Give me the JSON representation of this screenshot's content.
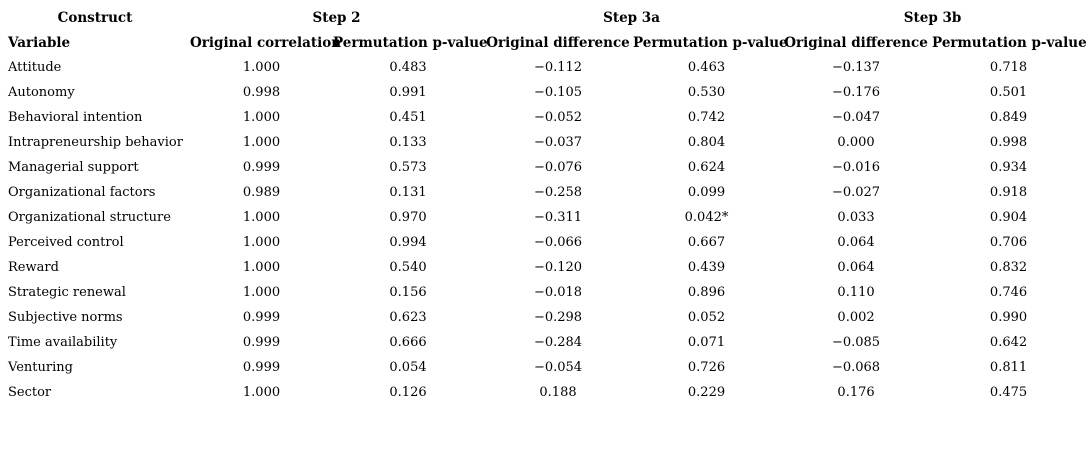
{
  "table": {
    "group_headers": [
      {
        "label": "Construct",
        "span": 1
      },
      {
        "label": "Step 2",
        "span": 2
      },
      {
        "label": "Step 3a",
        "span": 2
      },
      {
        "label": "Step 3b",
        "span": 2
      }
    ],
    "col_headers": [
      "Variable",
      "Original correlation",
      "Permutation p-value",
      "Original difference",
      "Permutation p-value",
      "Original difference",
      "Permutation p-value"
    ],
    "rows": [
      {
        "variable": "Attitude",
        "values": [
          "1.000",
          "0.483",
          "−0.112",
          "0.463",
          "−0.137",
          "0.718"
        ]
      },
      {
        "variable": "Autonomy",
        "values": [
          "0.998",
          "0.991",
          "−0.105",
          "0.530",
          "−0.176",
          "0.501"
        ]
      },
      {
        "variable": "Behavioral intention",
        "values": [
          "1.000",
          "0.451",
          "−0.052",
          "0.742",
          "−0.047",
          "0.849"
        ]
      },
      {
        "variable": "Intrapreneurship behavior",
        "values": [
          "1.000",
          "0.133",
          "−0.037",
          "0.804",
          "0.000",
          "0.998"
        ]
      },
      {
        "variable": "Managerial support",
        "values": [
          "0.999",
          "0.573",
          "−0.076",
          "0.624",
          "−0.016",
          "0.934"
        ]
      },
      {
        "variable": "Organizational factors",
        "values": [
          "0.989",
          "0.131",
          "−0.258",
          "0.099",
          "−0.027",
          "0.918"
        ]
      },
      {
        "variable": "Organizational structure",
        "values": [
          "1.000",
          "0.970",
          "−0.311",
          "0.042*",
          "0.033",
          "0.904"
        ]
      },
      {
        "variable": "Perceived control",
        "values": [
          "1.000",
          "0.994",
          "−0.066",
          "0.667",
          "0.064",
          "0.706"
        ]
      },
      {
        "variable": "Reward",
        "values": [
          "1.000",
          "0.540",
          "−0.120",
          "0.439",
          "0.064",
          "0.832"
        ]
      },
      {
        "variable": "Strategic renewal",
        "values": [
          "1.000",
          "0.156",
          "−0.018",
          "0.896",
          "0.110",
          "0.746"
        ]
      },
      {
        "variable": "Subjective norms",
        "values": [
          "0.999",
          "0.623",
          "−0.298",
          "0.052",
          "0.002",
          "0.990"
        ]
      },
      {
        "variable": "Time availability",
        "values": [
          "0.999",
          "0.666",
          "−0.284",
          "0.071",
          "−0.085",
          "0.642"
        ]
      },
      {
        "variable": "Venturing",
        "values": [
          "0.999",
          "0.054",
          "−0.054",
          "0.726",
          "−0.068",
          "0.811"
        ]
      },
      {
        "variable": "Sector",
        "values": [
          "1.000",
          "0.126",
          "0.188",
          "0.229",
          "0.176",
          "0.475"
        ]
      }
    ]
  },
  "colors": {
    "text": "#000000",
    "background": "#ffffff"
  }
}
